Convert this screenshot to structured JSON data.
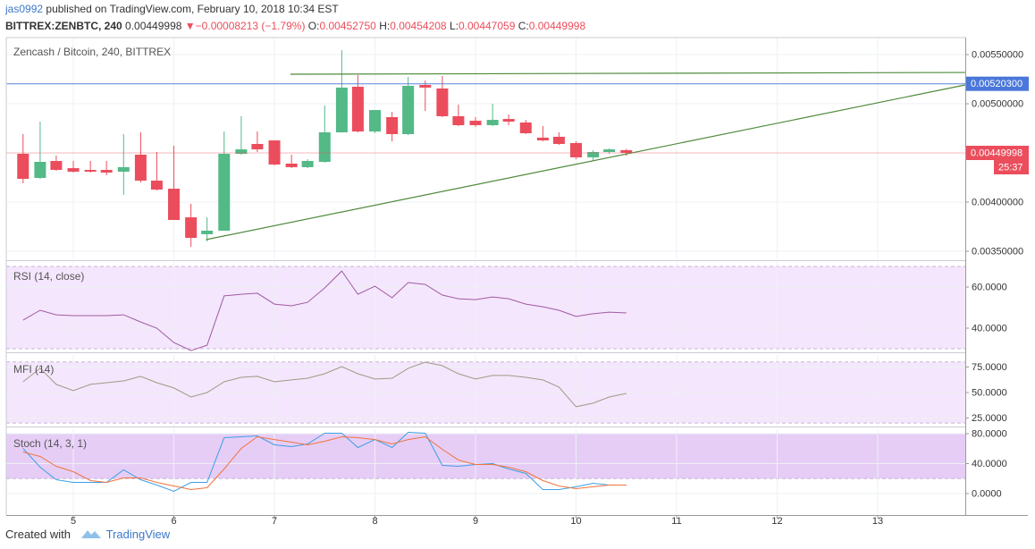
{
  "header": {
    "author": "jas0992",
    "published": "published on TradingView.com, February 10, 2018 10:34 EST",
    "symbol": "BITTREX:ZENBTC, 240",
    "price": "0.00449998",
    "arrow": "▼",
    "change": "−0.00008213 (−1.79%)",
    "ohlc": [
      {
        "label": "O:",
        "value": "0.00452750"
      },
      {
        "label": "H:",
        "value": "0.00454208"
      },
      {
        "label": "L:",
        "value": "0.00447059"
      },
      {
        "label": "C:",
        "value": "0.00449998"
      }
    ]
  },
  "footer": {
    "text": "Created with",
    "brand": "TradingView"
  },
  "chart_data": [
    {
      "type": "candlestick",
      "title": "Zencash / Bitcoin, 240, BITTREX",
      "up_color": "#53b987",
      "down_color": "#eb4d5c",
      "x": [
        4.5,
        4.67,
        4.83,
        5,
        5.17,
        5.33,
        5.5,
        5.67,
        5.83,
        6,
        6.17,
        6.33,
        6.5,
        6.67,
        6.83,
        7,
        7.17,
        7.33,
        7.5,
        7.67,
        7.83,
        8,
        8.17,
        8.33,
        8.5,
        8.67,
        8.83,
        9,
        9.17,
        9.33,
        9.5,
        9.67,
        9.83,
        10,
        10.17,
        10.33,
        10.5
      ],
      "open": [
        0.004491,
        0.004245,
        0.004418,
        0.004345,
        0.004327,
        0.004327,
        0.004309,
        0.004482,
        0.004218,
        0.004136,
        0.003845,
        0.003673,
        0.003709,
        0.004491,
        0.004591,
        0.004627,
        0.004391,
        0.004355,
        0.004409,
        0.004709,
        0.005173,
        0.004718,
        0.004864,
        0.004691,
        0.005191,
        0.005155,
        0.004873,
        0.004827,
        0.004782,
        0.004845,
        0.004809,
        0.004655,
        0.004664,
        0.0046,
        0.004455,
        0.004509,
        0.0045275
      ],
      "high": [
        0.004691,
        0.004818,
        0.004473,
        0.004418,
        0.004418,
        0.004418,
        0.004691,
        0.004709,
        0.004509,
        0.004573,
        0.003982,
        0.003845,
        0.004718,
        0.004873,
        0.004718,
        0.004627,
        0.004482,
        0.004436,
        0.004982,
        0.005545,
        0.005291,
        0.004936,
        0.004918,
        0.005273,
        0.005236,
        0.005282,
        0.004991,
        0.004864,
        0.005,
        0.004891,
        0.004836,
        0.004773,
        0.004709,
        0.004618,
        0.004527,
        0.004545,
        0.00454208
      ],
      "low": [
        0.004191,
        0.004236,
        0.004318,
        0.0043,
        0.0043,
        0.004273,
        0.004073,
        0.0042,
        0.004118,
        0.003818,
        0.003545,
        0.0036,
        0.003709,
        0.004482,
        0.004509,
        0.004373,
        0.004345,
        0.004345,
        0.0044,
        0.004709,
        0.004709,
        0.0047,
        0.004618,
        0.004682,
        0.004927,
        0.004864,
        0.004773,
        0.004764,
        0.004773,
        0.004782,
        0.004691,
        0.004618,
        0.004582,
        0.004436,
        0.004418,
        0.004491,
        0.00447059
      ],
      "close": [
        0.004236,
        0.004409,
        0.004327,
        0.004309,
        0.004309,
        0.0043,
        0.004355,
        0.004218,
        0.004127,
        0.003818,
        0.003636,
        0.003709,
        0.004491,
        0.004536,
        0.004536,
        0.004382,
        0.004355,
        0.004418,
        0.004709,
        0.005164,
        0.004718,
        0.004936,
        0.004691,
        0.005182,
        0.005164,
        0.004873,
        0.004782,
        0.004782,
        0.004836,
        0.004818,
        0.0047,
        0.004627,
        0.004591,
        0.004455,
        0.004509,
        0.004536,
        0.00449998
      ],
      "xlim": [
        4.333,
        13.871
      ],
      "xticks": [
        5,
        6,
        7,
        8,
        9,
        10,
        11,
        12,
        13
      ],
      "ylim": [
        0.003418,
        0.005673
      ],
      "yticks": [
        {
          "value": 0.0055,
          "label": "0.00550000"
        },
        {
          "value": 0.005,
          "label": "0.00500000"
        },
        {
          "value": 0.004,
          "label": "0.00400000"
        },
        {
          "value": 0.0035,
          "label": "0.00350000"
        }
      ],
      "price_lines": [
        {
          "value": 0.005203,
          "label": "0.00520300",
          "color": "#4a77d9"
        },
        {
          "value": 0.00449998,
          "label": "0.00449998",
          "color": "#eb4d5c",
          "countdown": "25:37"
        }
      ],
      "trend_color": "#4e8a3b",
      "trend_lines": [
        {
          "x": [
            7.16,
            13.87
          ],
          "y": [
            0.0053,
            0.005318
          ]
        },
        {
          "x": [
            6.32,
            13.87
          ],
          "y": [
            0.003618,
            0.005191
          ]
        }
      ],
      "grid": true
    },
    {
      "type": "line",
      "title": "RSI (14, close)",
      "ylim": [
        28.7,
        72.2
      ],
      "yticks": [
        {
          "value": 60,
          "label": "60.0000"
        },
        {
          "value": 40,
          "label": "40.0000"
        }
      ],
      "bands": [
        30,
        70
      ],
      "band_color": "#f4e6fc",
      "series": [
        {
          "color": "#a05aa2",
          "values": [
            43.9,
            48.7,
            46.5,
            46.1,
            46.1,
            46.1,
            46.5,
            43,
            40,
            33,
            29.1,
            31.7,
            55.7,
            56.5,
            57,
            51.7,
            50.9,
            52.6,
            59.6,
            67.8,
            56.5,
            60.4,
            54.8,
            62.2,
            61.3,
            56.1,
            54.3,
            53.9,
            55.2,
            54.3,
            51.7,
            50.4,
            48.7,
            45.7,
            47,
            47.8,
            47.4
          ]
        }
      ]
    },
    {
      "type": "line",
      "title": "MFI (14)",
      "ylim": [
        17.5,
        86.8
      ],
      "yticks": [
        {
          "value": 75,
          "label": "75.0000"
        },
        {
          "value": 50,
          "label": "50.0000"
        },
        {
          "value": 25,
          "label": "25.0000"
        }
      ],
      "bands": [
        20,
        80
      ],
      "band_color": "#f4e6fc",
      "series": [
        {
          "color": "#a09a85",
          "values": [
            60.5,
            73.7,
            57.9,
            51.8,
            57.9,
            59.6,
            61.4,
            65.8,
            59.6,
            54.4,
            45.6,
            50,
            60.5,
            64.9,
            65.8,
            60.5,
            62.3,
            64,
            68.4,
            75.4,
            68.4,
            63.2,
            64,
            73.7,
            79.8,
            76.3,
            68.4,
            63.2,
            66.7,
            66.7,
            64.9,
            62.3,
            55.3,
            36,
            39.5,
            45.6,
            49.1
          ]
        }
      ]
    },
    {
      "type": "line",
      "title": "Stoch (14, 3, 1)",
      "ylim": [
        -27.5,
        86
      ],
      "yticks": [
        {
          "value": 80,
          "label": "80.0000"
        },
        {
          "value": 40,
          "label": "40.0000"
        },
        {
          "value": 0,
          "label": "0.0000"
        }
      ],
      "bands": [
        20,
        80
      ],
      "band_color": "#e6cdf6",
      "series": [
        {
          "color": "#3c9fe6",
          "values": [
            60.3,
            35.2,
            18.5,
            14.9,
            14.9,
            14.9,
            31.6,
            18.5,
            11.3,
            3,
            14.9,
            14.9,
            74.6,
            75.8,
            77,
            65.1,
            62.7,
            66.3,
            80.6,
            80.6,
            61.5,
            72.2,
            61.5,
            81.8,
            80.6,
            37.6,
            36.4,
            38.8,
            40,
            32.8,
            26.9,
            5.4,
            5.4,
            9,
            13.7,
            11.3,
            11.3
          ]
        },
        {
          "color": "#f1743c",
          "values": [
            55.5,
            49.6,
            36.4,
            29.3,
            17.3,
            14.9,
            20.9,
            20.9,
            14.9,
            10.1,
            5.4,
            7.8,
            32.8,
            60.3,
            75.8,
            72.2,
            68.7,
            65.1,
            69.9,
            75.8,
            74.6,
            72.2,
            66.3,
            72.2,
            75.8,
            59.1,
            44.8,
            38.8,
            38.8,
            35.2,
            29.3,
            17.3,
            10.1,
            6.6,
            9,
            11.3,
            11.3
          ]
        }
      ]
    }
  ]
}
